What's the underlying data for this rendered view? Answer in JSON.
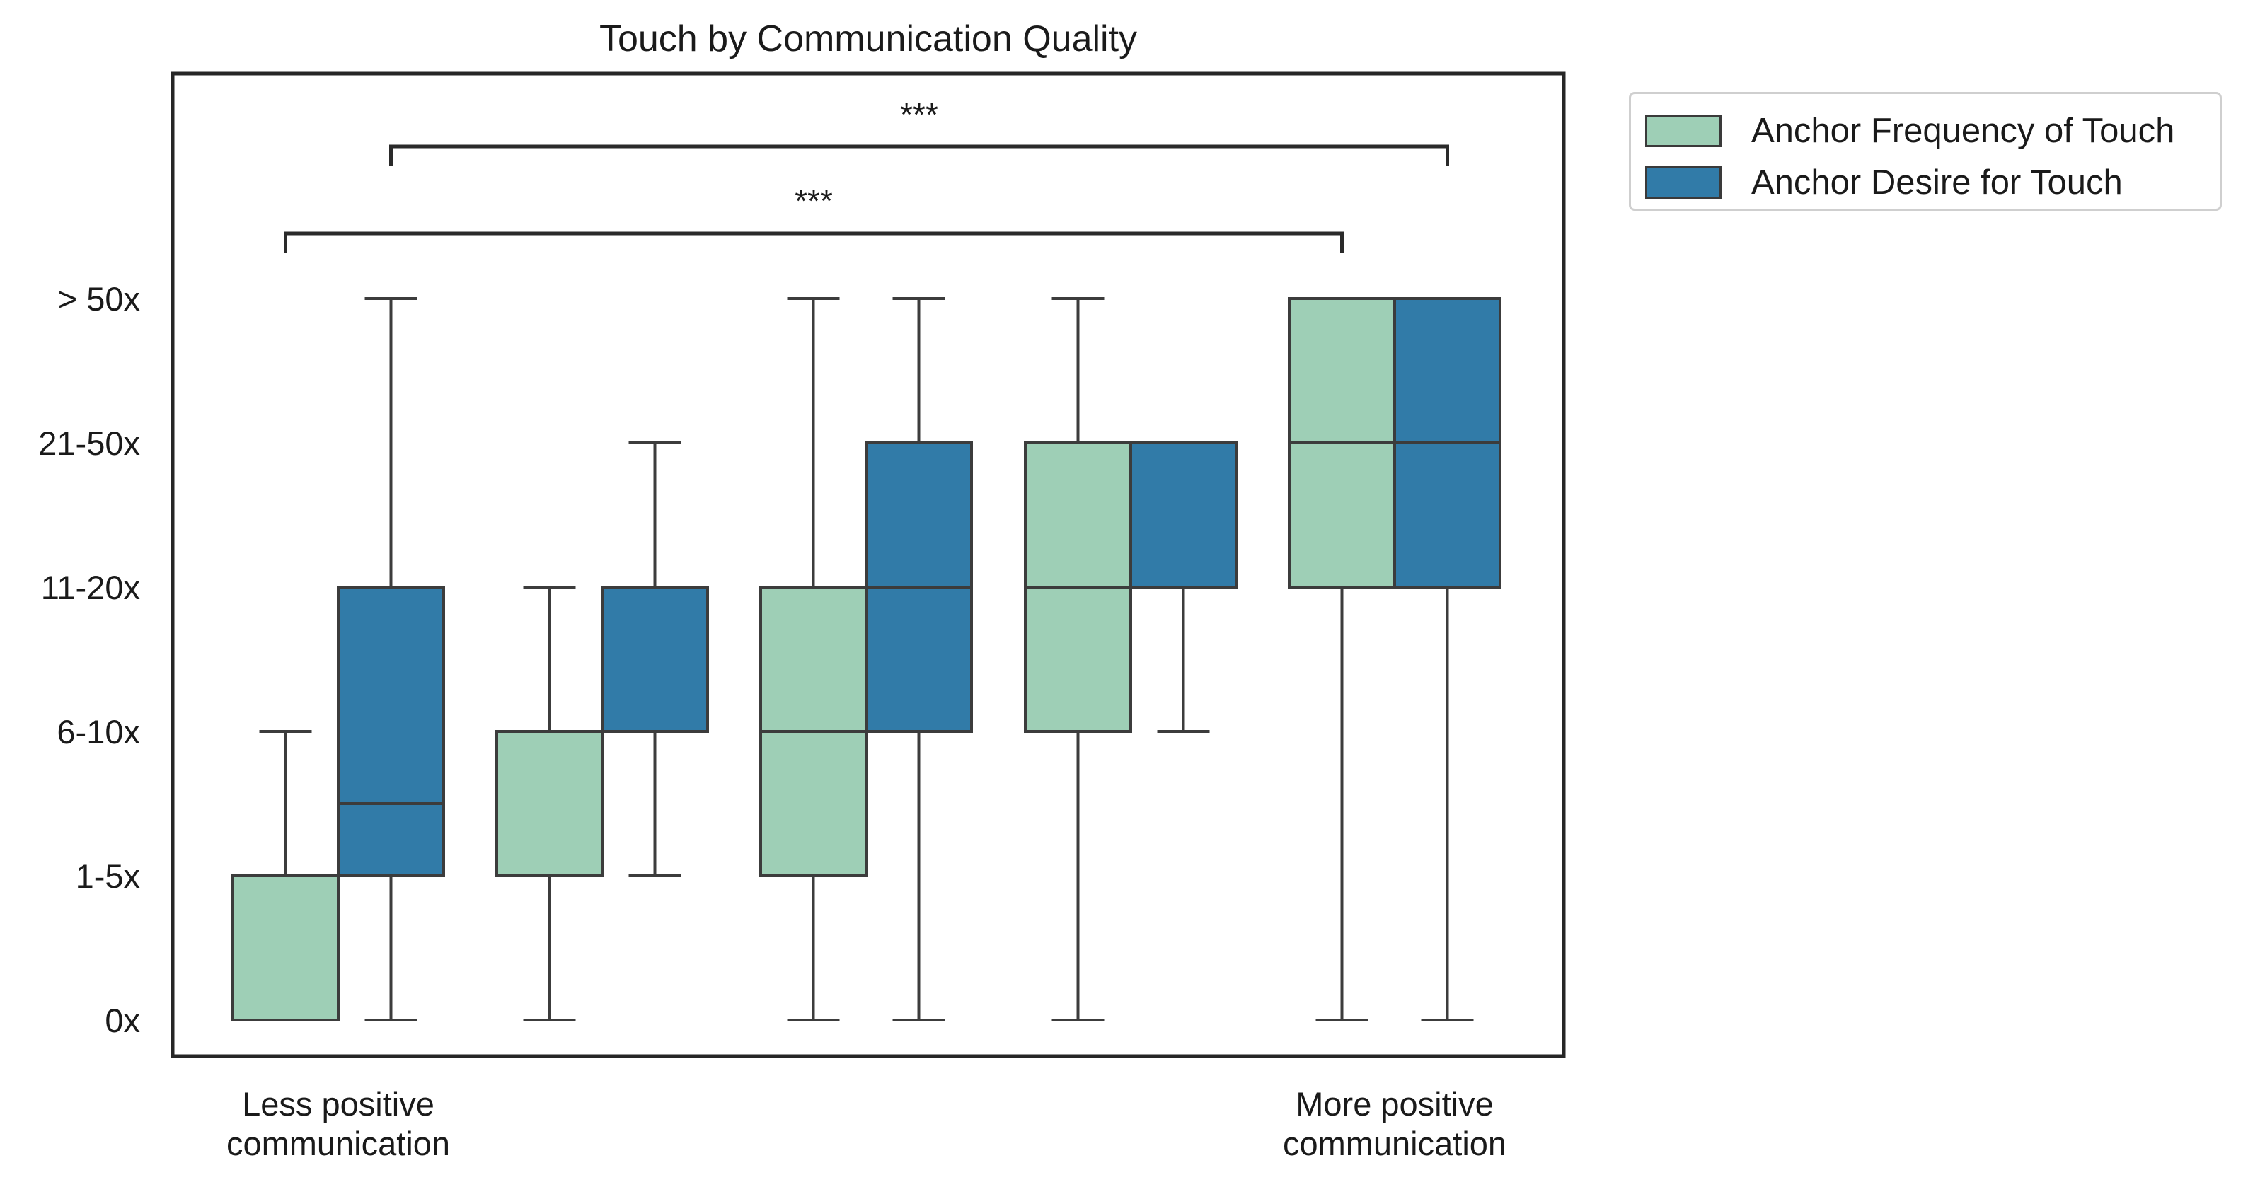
{
  "chart_data": {
    "type": "box",
    "title": "Touch by Communication Quality",
    "xlabel": "",
    "ylabel": "",
    "y_tick_labels": [
      "0x",
      "1-5x",
      "6-10x",
      "11-20x",
      "21-50x",
      "> 50x"
    ],
    "x_tick_labels": [
      "Less positive\ncommunication",
      "",
      "",
      "",
      "More positive\ncommunication"
    ],
    "categories": [
      "Less positive communication",
      "",
      "",
      "",
      "More positive communication"
    ],
    "series": [
      {
        "name": "Anchor Frequency of Touch",
        "color": "#9ecfb6",
        "boxes": [
          {
            "whisker_low": 0,
            "q1": 0,
            "median": 0,
            "q3": 1,
            "whisker_high": 2
          },
          {
            "whisker_low": 0,
            "q1": 1,
            "median": 1,
            "q3": 2,
            "whisker_high": 3
          },
          {
            "whisker_low": 0,
            "q1": 1,
            "median": 2,
            "q3": 3,
            "whisker_high": 5
          },
          {
            "whisker_low": 0,
            "q1": 2,
            "median": 3,
            "q3": 4,
            "whisker_high": 5
          },
          {
            "whisker_low": 0,
            "q1": 3,
            "median": 4,
            "q3": 5,
            "whisker_high": 5
          }
        ]
      },
      {
        "name": "Anchor Desire for Touch",
        "color": "#317ba8",
        "boxes": [
          {
            "whisker_low": 0,
            "q1": 1,
            "median": 1.5,
            "q3": 3,
            "whisker_high": 5
          },
          {
            "whisker_low": 1,
            "q1": 2,
            "median": 2,
            "q3": 3,
            "whisker_high": 4
          },
          {
            "whisker_low": 0,
            "q1": 2,
            "median": 3,
            "q3": 4,
            "whisker_high": 5
          },
          {
            "whisker_low": 2,
            "q1": 3,
            "median": 3,
            "q3": 4,
            "whisker_high": 4
          },
          {
            "whisker_low": 0,
            "q1": 3,
            "median": 4,
            "q3": 5,
            "whisker_high": 5
          }
        ]
      }
    ],
    "significance": [
      {
        "label": "***",
        "from": {
          "group": 0,
          "series": 1
        },
        "to": {
          "group": 4,
          "series": 1
        }
      },
      {
        "label": "***",
        "from": {
          "group": 0,
          "series": 0
        },
        "to": {
          "group": 4,
          "series": 0
        }
      }
    ],
    "legend": {
      "position": "outside-top-right"
    },
    "grid": false
  }
}
